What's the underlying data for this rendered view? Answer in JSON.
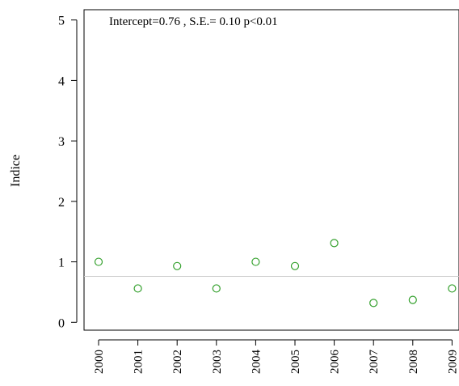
{
  "chart_data": {
    "type": "scatter",
    "annotation": "Intercept=0.76 , S.E.= 0.10 p<0.01",
    "ylabel": "Indice",
    "xlabel": "",
    "x": [
      "2000",
      "2001",
      "2002",
      "2003",
      "2004",
      "2005",
      "2006",
      "2007",
      "2008",
      "2009"
    ],
    "y": [
      1.0,
      0.56,
      0.93,
      0.56,
      1.0,
      0.93,
      1.31,
      0.32,
      0.37,
      0.56
    ],
    "intercept_line": 0.76,
    "ylim": [
      -0.13,
      5.17
    ],
    "yticks": [
      "0",
      "1",
      "2",
      "3",
      "4",
      "5"
    ],
    "grid": false,
    "point_color": "#33a02c",
    "line_color": "#cccccc"
  }
}
